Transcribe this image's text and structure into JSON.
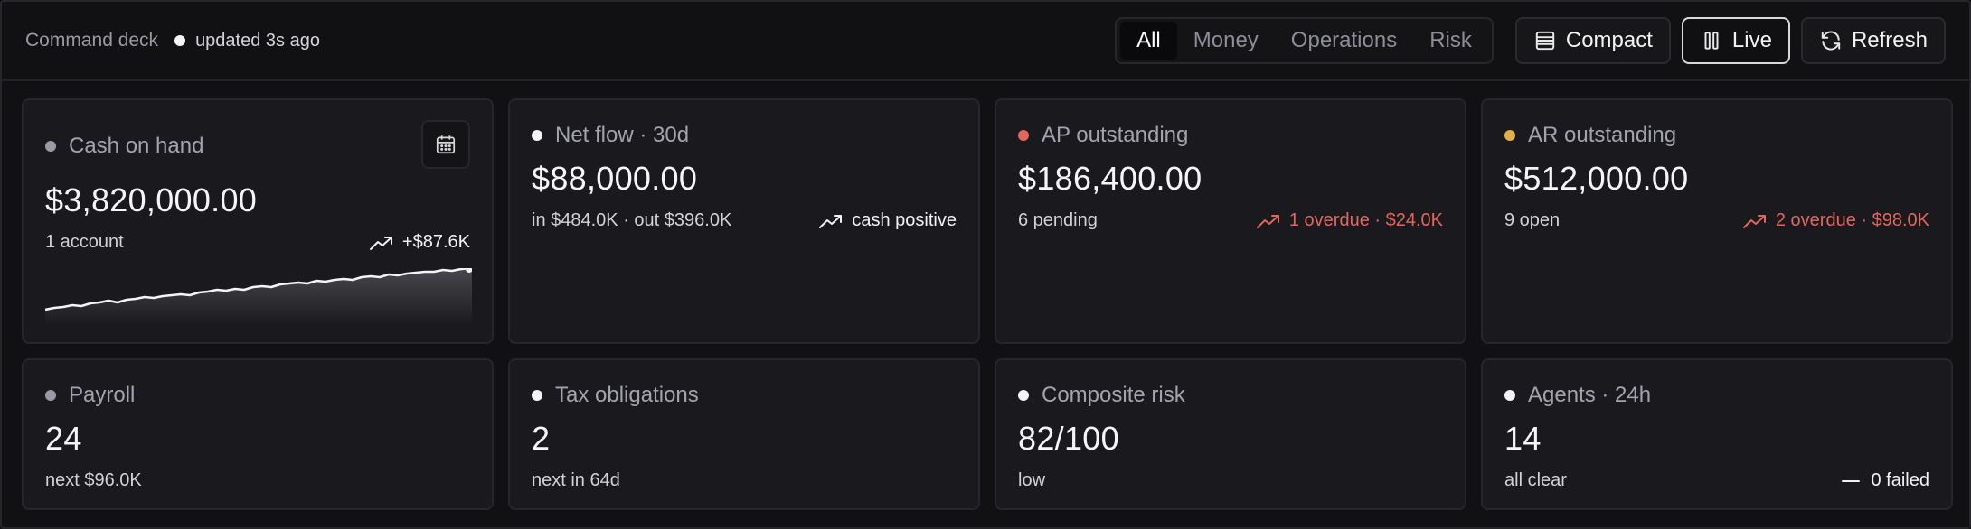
{
  "header": {
    "title": "Command deck",
    "updated": "updated 3s ago",
    "tabs": [
      {
        "label": "All",
        "active": true
      },
      {
        "label": "Money",
        "active": false
      },
      {
        "label": "Operations",
        "active": false
      },
      {
        "label": "Risk",
        "active": false
      }
    ],
    "compact_label": "Compact",
    "live_label": "Live",
    "refresh_label": "Refresh"
  },
  "cards": {
    "cash": {
      "label": "Cash on hand",
      "dot": "#9a9aa2",
      "value": "$3,820,000.00",
      "sub": "1 account",
      "trend": "+$87.6K",
      "trend_icon": "trending-up-icon"
    },
    "netflow": {
      "label": "Net flow · 30d",
      "dot": "#f4f4f6",
      "value": "$88,000.00",
      "sub": "in $484.0K · out $396.0K",
      "trend": "cash positive",
      "trend_icon": "trending-up-icon"
    },
    "ap": {
      "label": "AP outstanding",
      "dot": "#e0675e",
      "value": "$186,400.00",
      "sub": "6 pending",
      "trend": "1 overdue · $24.0K",
      "trend_icon": "trending-up-icon",
      "trend_color": "#e0675e"
    },
    "ar": {
      "label": "AR outstanding",
      "dot": "#e2b04a",
      "value": "$512,000.00",
      "sub": "9 open",
      "trend": "2 overdue · $98.0K",
      "trend_icon": "trending-up-icon",
      "trend_color": "#e0675e"
    },
    "payroll": {
      "label": "Payroll",
      "dot": "#9a9aa2",
      "value": "24",
      "sub": "next $96.0K"
    },
    "tax": {
      "label": "Tax obligations",
      "dot": "#f4f4f6",
      "value": "2",
      "sub": "next in 64d"
    },
    "risk": {
      "label": "Composite risk",
      "dot": "#f4f4f6",
      "value": "82/100",
      "sub": "low"
    },
    "agents": {
      "label": "Agents · 24h",
      "dot": "#f4f4f6",
      "value": "14",
      "sub": "all clear",
      "trend": "0 failed",
      "trend_icon": "minus-icon"
    }
  },
  "colors": {
    "accent_bad": "#e0675e",
    "accent_warn": "#e2b04a",
    "text": "#f6f6f8"
  }
}
